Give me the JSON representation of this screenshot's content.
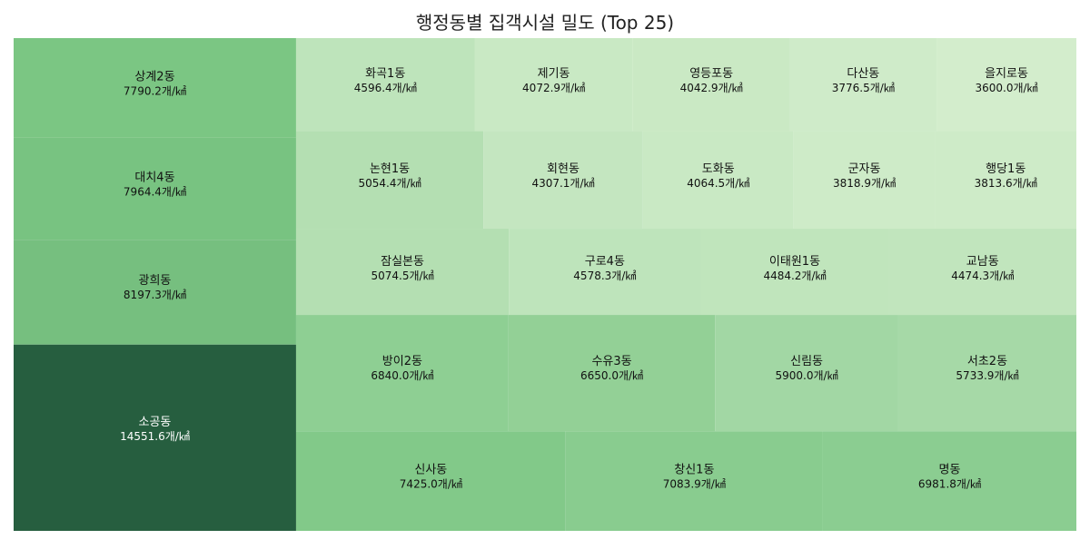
{
  "chart_data": {
    "type": "treemap",
    "title": "행정동별 집객시설 밀도 (Top 25)",
    "unit": "개/㎢",
    "color_scale": {
      "low": "#d3edcc",
      "mid": "#7bc683",
      "high": "#265e3f"
    },
    "columns": [
      {
        "rows": [
          {
            "cells": [
              {
                "name": "상계2동",
                "value": 7790.2
              }
            ]
          },
          {
            "cells": [
              {
                "name": "대치4동",
                "value": 7964.4
              }
            ]
          },
          {
            "cells": [
              {
                "name": "광희동",
                "value": 8197.3
              }
            ]
          },
          {
            "cells": [
              {
                "name": "소공동",
                "value": 14551.6
              }
            ]
          }
        ]
      },
      {
        "rows": [
          {
            "cells": [
              {
                "name": "화곡1동",
                "value": 4596.4
              },
              {
                "name": "제기동",
                "value": 4072.9
              },
              {
                "name": "영등포동",
                "value": 4042.9
              },
              {
                "name": "다산동",
                "value": 3776.5
              },
              {
                "name": "을지로동",
                "value": 3600.0
              }
            ]
          },
          {
            "cells": [
              {
                "name": "논현1동",
                "value": 5054.4
              },
              {
                "name": "회현동",
                "value": 4307.1
              },
              {
                "name": "도화동",
                "value": 4064.5
              },
              {
                "name": "군자동",
                "value": 3818.9
              },
              {
                "name": "행당1동",
                "value": 3813.6
              }
            ]
          },
          {
            "cells": [
              {
                "name": "잠실본동",
                "value": 5074.5
              },
              {
                "name": "구로4동",
                "value": 4578.3
              },
              {
                "name": "이태원1동",
                "value": 4484.2
              },
              {
                "name": "교남동",
                "value": 4474.3
              }
            ]
          },
          {
            "cells": [
              {
                "name": "방이2동",
                "value": 6840.0
              },
              {
                "name": "수유3동",
                "value": 6650.0
              },
              {
                "name": "신림동",
                "value": 5900.0
              },
              {
                "name": "서초2동",
                "value": 5733.9
              }
            ]
          },
          {
            "cells": [
              {
                "name": "신사동",
                "value": 7425.0
              },
              {
                "name": "창신1동",
                "value": 7083.9
              },
              {
                "name": "명동",
                "value": 6981.8
              }
            ]
          }
        ]
      }
    ]
  }
}
